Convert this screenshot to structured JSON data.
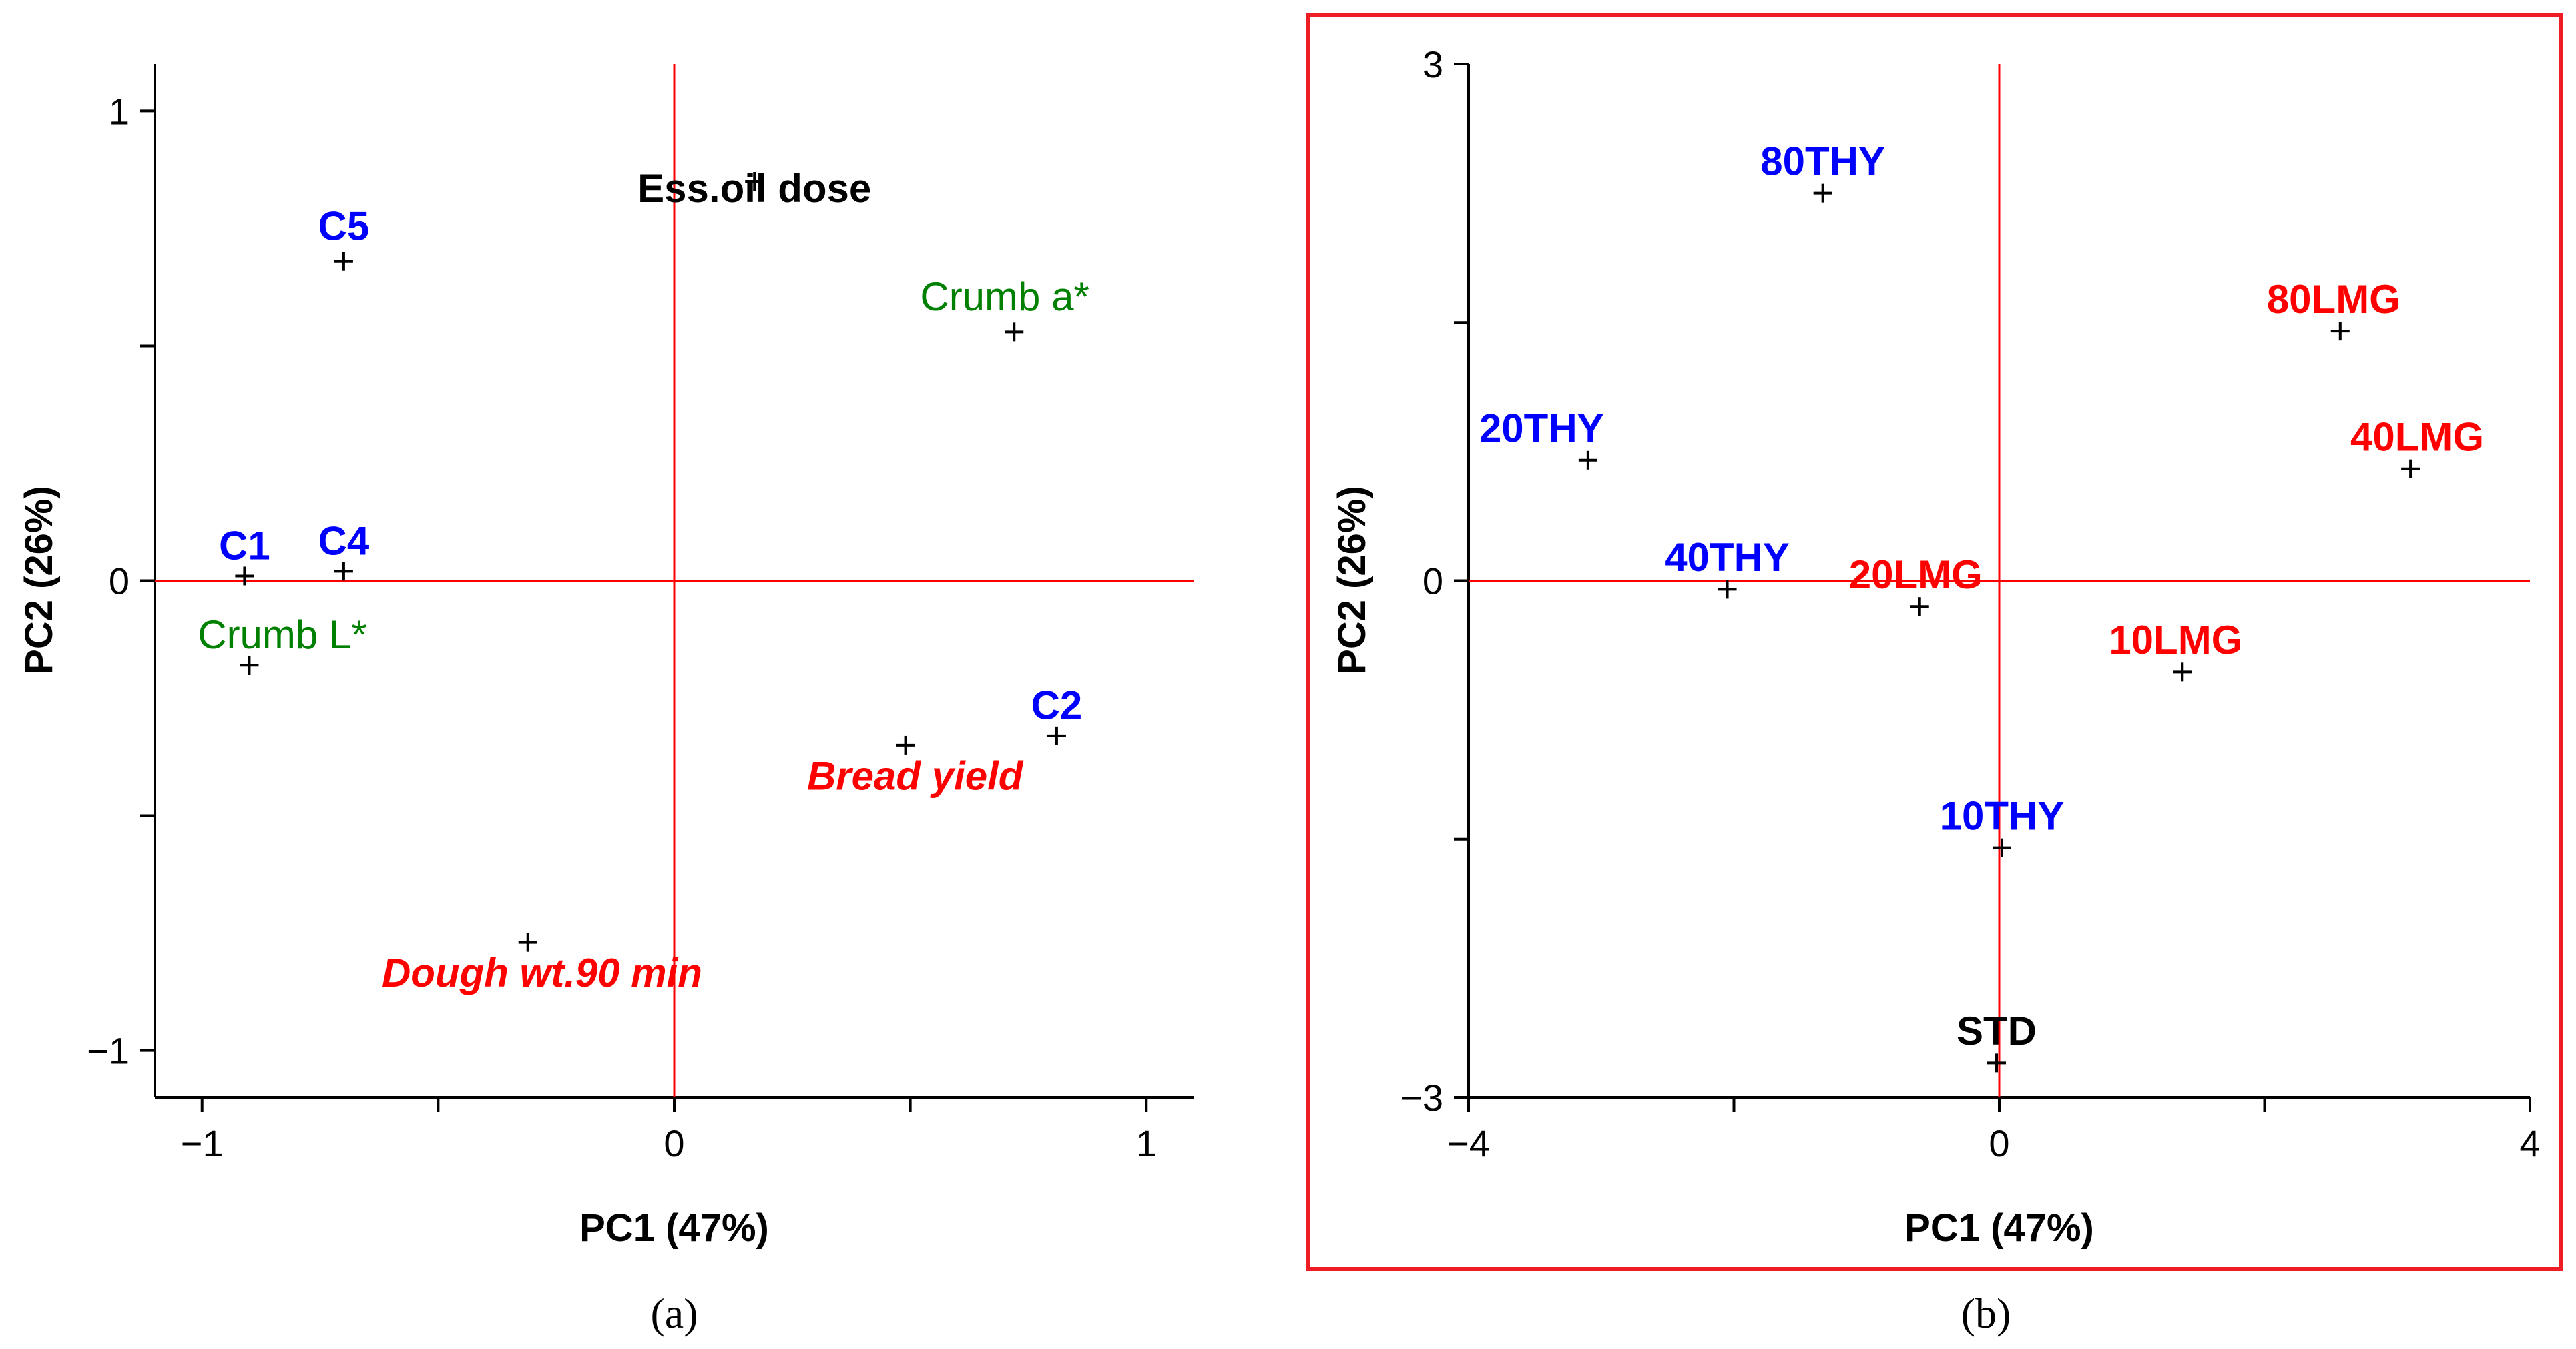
{
  "chart_data": [
    {
      "type": "scatter",
      "panel": "(a)",
      "title": "",
      "xlabel": "PC1 (47%)",
      "ylabel": "PC2 (26%)",
      "xlim": [
        -1.1,
        1.1
      ],
      "ylim": [
        -1.1,
        1.1
      ],
      "xticks": [
        -1,
        -0.5,
        0,
        0.5,
        1
      ],
      "yticks": [
        -1,
        -0.5,
        0,
        0.5,
        1
      ],
      "xtick_labels": [
        "−1",
        "",
        "0",
        "",
        "1"
      ],
      "ytick_labels": [
        "−1",
        "",
        "0",
        "",
        "1"
      ],
      "points": [
        {
          "label": "Ess.oil dose",
          "x": 0.17,
          "y": 0.85,
          "color": "#000000",
          "bold": true,
          "italic": false,
          "anchor": "middle",
          "dx": 0,
          "dy": -0.05
        },
        {
          "label": "C5",
          "x": -0.7,
          "y": 0.68,
          "color": "#0000ff",
          "bold": true,
          "italic": false,
          "anchor": "middle",
          "dx": 0,
          "dy": 0.04
        },
        {
          "label": "Crumb a*",
          "x": 0.72,
          "y": 0.53,
          "color": "#008000",
          "bold": false,
          "italic": false,
          "anchor": "middle",
          "dx": -0.02,
          "dy": 0.04
        },
        {
          "label": "C1",
          "x": -0.91,
          "y": 0.01,
          "color": "#0000ff",
          "bold": true,
          "italic": false,
          "anchor": "middle",
          "dx": 0,
          "dy": 0.03
        },
        {
          "label": "C4",
          "x": -0.7,
          "y": 0.02,
          "color": "#0000ff",
          "bold": true,
          "italic": false,
          "anchor": "middle",
          "dx": 0,
          "dy": 0.03
        },
        {
          "label": "Crumb L*",
          "x": -0.9,
          "y": -0.18,
          "color": "#008000",
          "bold": false,
          "italic": false,
          "anchor": "middle",
          "dx": 0.07,
          "dy": 0.03
        },
        {
          "label": "C2",
          "x": 0.81,
          "y": -0.33,
          "color": "#0000ff",
          "bold": true,
          "italic": false,
          "anchor": "middle",
          "dx": 0,
          "dy": 0.03
        },
        {
          "label": "Bread yield",
          "x": 0.49,
          "y": -0.35,
          "color": "#ff0000",
          "bold": true,
          "italic": true,
          "anchor": "middle",
          "dx": 0.02,
          "dy": -0.1
        },
        {
          "label": "Dough wt.90 min",
          "x": -0.31,
          "y": -0.77,
          "color": "#ff0000",
          "bold": true,
          "italic": true,
          "anchor": "middle",
          "dx": 0.03,
          "dy": -0.1
        }
      ]
    },
    {
      "type": "scatter",
      "panel": "(b)",
      "title": "",
      "xlabel": "PC1 (47%)",
      "ylabel": "PC2 (26%)",
      "xlim": [
        -4,
        4
      ],
      "ylim": [
        -3,
        3
      ],
      "xticks": [
        -4,
        -2,
        0,
        2,
        4
      ],
      "yticks": [
        -3,
        -1.5,
        0,
        1.5,
        3
      ],
      "xtick_labels": [
        "−4",
        "",
        "0",
        "",
        "4"
      ],
      "ytick_labels": [
        "−3",
        "",
        "0",
        "",
        "3"
      ],
      "points": [
        {
          "label": "80THY",
          "x": -1.33,
          "y": 2.25,
          "color": "#0000ff",
          "bold": true,
          "italic": false,
          "anchor": "middle",
          "dx": 0,
          "dy": 0.09
        },
        {
          "label": "80LMG",
          "x": 2.57,
          "y": 1.45,
          "color": "#ff0000",
          "bold": true,
          "italic": false,
          "anchor": "middle",
          "dx": -0.05,
          "dy": 0.09
        },
        {
          "label": "20THY",
          "x": -3.1,
          "y": 0.7,
          "color": "#0000ff",
          "bold": true,
          "italic": false,
          "anchor": "middle",
          "dx": -0.35,
          "dy": 0.09
        },
        {
          "label": "40LMG",
          "x": 3.1,
          "y": 0.65,
          "color": "#ff0000",
          "bold": true,
          "italic": false,
          "anchor": "middle",
          "dx": 0.05,
          "dy": 0.09
        },
        {
          "label": "40THY",
          "x": -2.05,
          "y": -0.05,
          "color": "#0000ff",
          "bold": true,
          "italic": false,
          "anchor": "middle",
          "dx": 0,
          "dy": 0.09
        },
        {
          "label": "20LMG",
          "x": -0.6,
          "y": -0.15,
          "color": "#ff0000",
          "bold": true,
          "italic": false,
          "anchor": "middle",
          "dx": -0.03,
          "dy": 0.09
        },
        {
          "label": "10LMG",
          "x": 1.38,
          "y": -0.53,
          "color": "#ff0000",
          "bold": true,
          "italic": false,
          "anchor": "middle",
          "dx": -0.05,
          "dy": 0.09
        },
        {
          "label": "10THY",
          "x": 0.02,
          "y": -1.55,
          "color": "#0000ff",
          "bold": true,
          "italic": false,
          "anchor": "middle",
          "dx": 0,
          "dy": 0.09
        },
        {
          "label": "STD",
          "x": -0.02,
          "y": -2.8,
          "color": "#000000",
          "bold": true,
          "italic": false,
          "anchor": "middle",
          "dx": 0,
          "dy": 0.09
        }
      ]
    }
  ],
  "captions": [
    "(a)",
    "(b)"
  ]
}
